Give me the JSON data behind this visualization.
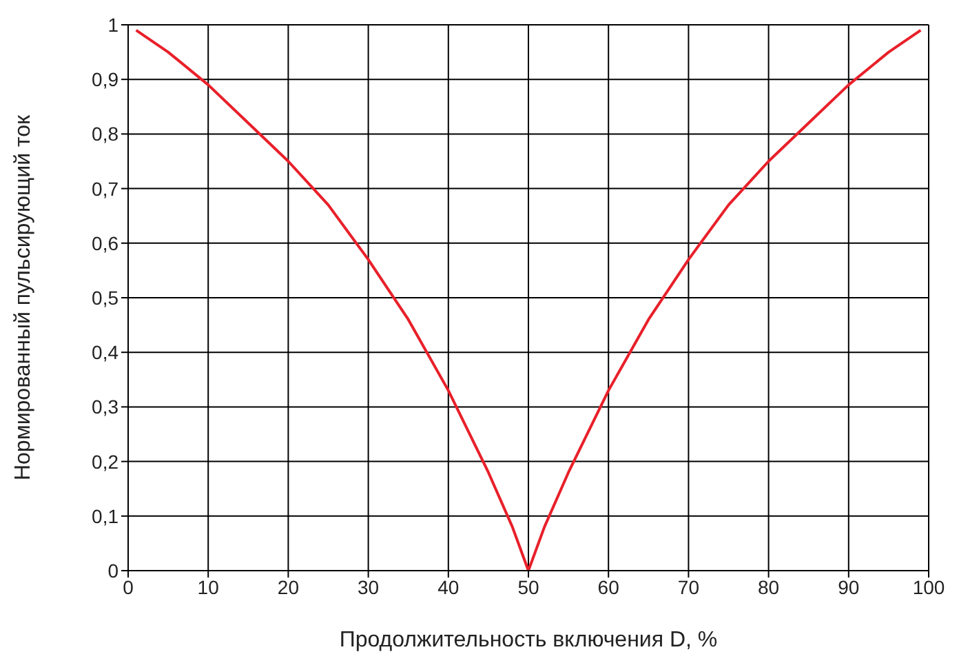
{
  "chart_data": {
    "type": "line",
    "xlabel": "Продолжительность включения D, %",
    "ylabel": "Нормированный пульсирующий ток",
    "x": [
      1,
      5,
      10,
      15,
      20,
      25,
      30,
      35,
      40,
      45,
      48,
      50,
      52,
      55,
      60,
      65,
      70,
      75,
      80,
      85,
      90,
      95,
      99
    ],
    "series": [
      {
        "color": "#e8202a",
        "values": [
          0.99,
          0.95,
          0.89,
          0.82,
          0.75,
          0.67,
          0.57,
          0.46,
          0.33,
          0.18,
          0.08,
          0,
          0.08,
          0.18,
          0.33,
          0.46,
          0.57,
          0.67,
          0.75,
          0.82,
          0.89,
          0.95,
          0.99
        ]
      }
    ],
    "xlim": [
      0,
      100
    ],
    "xticks": [
      0,
      10,
      20,
      30,
      40,
      50,
      60,
      70,
      80,
      90,
      100
    ],
    "ylim": [
      0,
      1
    ],
    "yticks": [
      0,
      {
        "value": 0.1,
        "label": "0,1"
      },
      {
        "value": 0.2,
        "label": "0,2"
      },
      {
        "value": 0.3,
        "label": "0,3"
      },
      {
        "value": 0.4,
        "label": "0,4"
      },
      {
        "value": 0.5,
        "label": "0,5"
      },
      {
        "value": 0.6,
        "label": "0,6"
      },
      {
        "value": 0.7,
        "label": "0,7"
      },
      {
        "value": 0.8,
        "label": "0,8"
      },
      {
        "value": 0.9,
        "label": "0,9"
      },
      1
    ],
    "grid": true,
    "marker": "none",
    "line_style": "solid"
  }
}
